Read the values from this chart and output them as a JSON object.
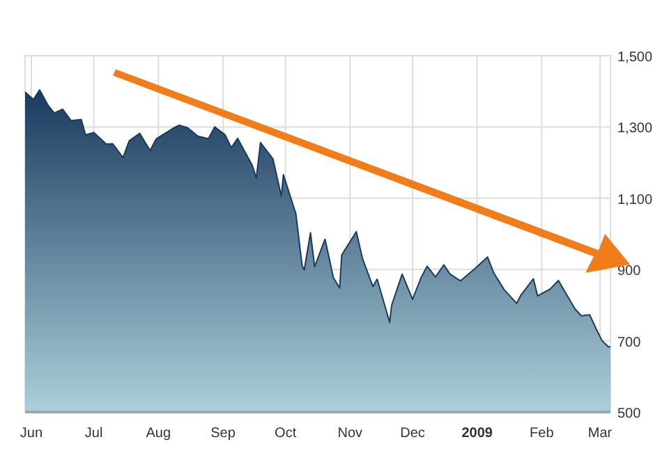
{
  "chart_data": {
    "type": "area",
    "x": [
      "2008-05-29",
      "2008-06-02",
      "2008-06-05",
      "2008-06-09",
      "2008-06-12",
      "2008-06-16",
      "2008-06-20",
      "2008-06-25",
      "2008-06-27",
      "2008-07-01",
      "2008-07-07",
      "2008-07-10",
      "2008-07-15",
      "2008-07-18",
      "2008-07-23",
      "2008-07-28",
      "2008-07-31",
      "2008-08-05",
      "2008-08-08",
      "2008-08-11",
      "2008-08-15",
      "2008-08-20",
      "2008-08-25",
      "2008-08-28",
      "2008-09-02",
      "2008-09-05",
      "2008-09-08",
      "2008-09-15",
      "2008-09-17",
      "2008-09-19",
      "2008-09-25",
      "2008-09-29",
      "2008-09-30",
      "2008-10-06",
      "2008-10-09",
      "2008-10-10",
      "2008-10-13",
      "2008-10-15",
      "2008-10-20",
      "2008-10-24",
      "2008-10-27",
      "2008-10-28",
      "2008-11-04",
      "2008-11-07",
      "2008-11-12",
      "2008-11-14",
      "2008-11-20",
      "2008-11-21",
      "2008-11-26",
      "2008-12-01",
      "2008-12-05",
      "2008-12-08",
      "2008-12-12",
      "2008-12-16",
      "2008-12-19",
      "2008-12-24",
      "2008-12-31",
      "2009-01-06",
      "2009-01-09",
      "2009-01-14",
      "2009-01-20",
      "2009-01-22",
      "2009-01-28",
      "2009-01-30",
      "2009-02-05",
      "2009-02-09",
      "2009-02-17",
      "2009-02-20",
      "2009-02-24",
      "2009-02-27",
      "2009-03-02",
      "2009-03-05",
      "2009-03-06"
    ],
    "series": [
      {
        "color": "#1b3a5e",
        "values": [
          1398,
          1377,
          1404,
          1361,
          1339,
          1350,
          1318,
          1321,
          1278,
          1284,
          1252,
          1253,
          1214,
          1261,
          1282,
          1234,
          1267,
          1285,
          1296,
          1305,
          1298,
          1274,
          1267,
          1300,
          1278,
          1242,
          1268,
          1193,
          1157,
          1256,
          1210,
          1106,
          1166,
          1056,
          910,
          899,
          1003,
          908,
          985,
          877,
          848,
          941,
          1006,
          930,
          852,
          873,
          752,
          800,
          887,
          816,
          876,
          909,
          879,
          913,
          887,
          868,
          903,
          935,
          890,
          843,
          805,
          828,
          874,
          826,
          845,
          869,
          789,
          770,
          773,
          735,
          700,
          683,
          683
        ]
      }
    ],
    "xlim": [
      "2008-05-29",
      "2009-03-06"
    ],
    "xticks": [
      {
        "value": "2008-06-01",
        "label": "Jun"
      },
      {
        "value": "2008-07-01",
        "label": "Jul"
      },
      {
        "value": "2008-08-01",
        "label": "Aug"
      },
      {
        "value": "2008-09-01",
        "label": "Sep"
      },
      {
        "value": "2008-10-01",
        "label": "Oct"
      },
      {
        "value": "2008-11-01",
        "label": "Nov"
      },
      {
        "value": "2008-12-01",
        "label": "Dec"
      },
      {
        "value": "2009-01-01",
        "label": "2009"
      },
      {
        "value": "2009-02-01",
        "label": "Feb"
      },
      {
        "value": "2009-03-01",
        "label": "Mar"
      }
    ],
    "ylim": [
      500,
      1500
    ],
    "yticks": [
      {
        "value": 500,
        "label": "500"
      },
      {
        "value": 700,
        "label": "700"
      },
      {
        "value": 900,
        "label": "900"
      },
      {
        "value": 1100,
        "label": "1,100"
      },
      {
        "value": 1300,
        "label": "1,300"
      },
      {
        "value": 1500,
        "label": "1,500"
      }
    ],
    "grid": true
  }
}
